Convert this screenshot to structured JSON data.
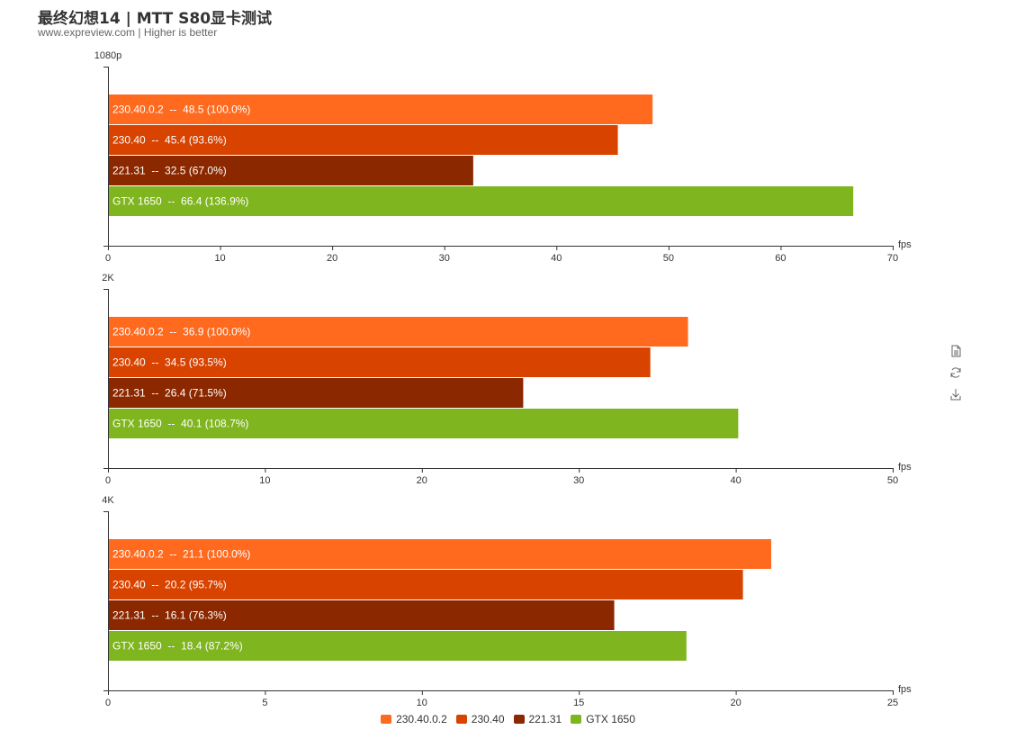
{
  "header": {
    "title": "最终幻想14 | MTT S80显卡测试",
    "subtitle": "www.expreview.com | Higher is better"
  },
  "toolbox": {
    "icons": [
      "data-view-icon",
      "restore-icon",
      "save-image-icon"
    ]
  },
  "colors": {
    "230.40.0.2": "#FF6A1F",
    "230.40": "#D84300",
    "221.31": "#8B2800",
    "GTX 1650": "#7FB51E"
  },
  "chart_data": [
    {
      "type": "bar",
      "orientation": "horizontal",
      "title": "1080p",
      "xlabel": "fps",
      "xlim": [
        0,
        70
      ],
      "xticks": [
        0,
        10,
        20,
        30,
        40,
        50,
        60,
        70
      ],
      "grid": false,
      "series": [
        {
          "name": "230.40.0.2",
          "value": 48.5,
          "label": "230.40.0.2  --  48.5 (100.0%)"
        },
        {
          "name": "230.40",
          "value": 45.4,
          "label": "230.40  --  45.4 (93.6%)"
        },
        {
          "name": "221.31",
          "value": 32.5,
          "label": "221.31  --  32.5 (67.0%)"
        },
        {
          "name": "GTX 1650",
          "value": 66.4,
          "label": "GTX 1650  --  66.4 (136.9%)"
        }
      ]
    },
    {
      "type": "bar",
      "orientation": "horizontal",
      "title": "2K",
      "xlabel": "fps",
      "xlim": [
        0,
        50
      ],
      "xticks": [
        0,
        10,
        20,
        30,
        40,
        50
      ],
      "grid": false,
      "series": [
        {
          "name": "230.40.0.2",
          "value": 36.9,
          "label": "230.40.0.2  --  36.9 (100.0%)"
        },
        {
          "name": "230.40",
          "value": 34.5,
          "label": "230.40  --  34.5 (93.5%)"
        },
        {
          "name": "221.31",
          "value": 26.4,
          "label": "221.31  --  26.4 (71.5%)"
        },
        {
          "name": "GTX 1650",
          "value": 40.1,
          "label": "GTX 1650  --  40.1 (108.7%)"
        }
      ]
    },
    {
      "type": "bar",
      "orientation": "horizontal",
      "title": "4K",
      "xlabel": "fps",
      "xlim": [
        0,
        25
      ],
      "xticks": [
        0,
        5,
        10,
        15,
        20,
        25
      ],
      "grid": false,
      "series": [
        {
          "name": "230.40.0.2",
          "value": 21.1,
          "label": "230.40.0.2  --  21.1 (100.0%)"
        },
        {
          "name": "230.40",
          "value": 20.2,
          "label": "230.40  --  20.2 (95.7%)"
        },
        {
          "name": "221.31",
          "value": 16.1,
          "label": "221.31  --  16.1 (76.3%)"
        },
        {
          "name": "GTX 1650",
          "value": 18.4,
          "label": "GTX 1650  --  18.4 (87.2%)"
        }
      ]
    }
  ],
  "legend": {
    "placement": "bottom-center",
    "items": [
      "230.40.0.2",
      "230.40",
      "221.31",
      "GTX 1650"
    ]
  }
}
